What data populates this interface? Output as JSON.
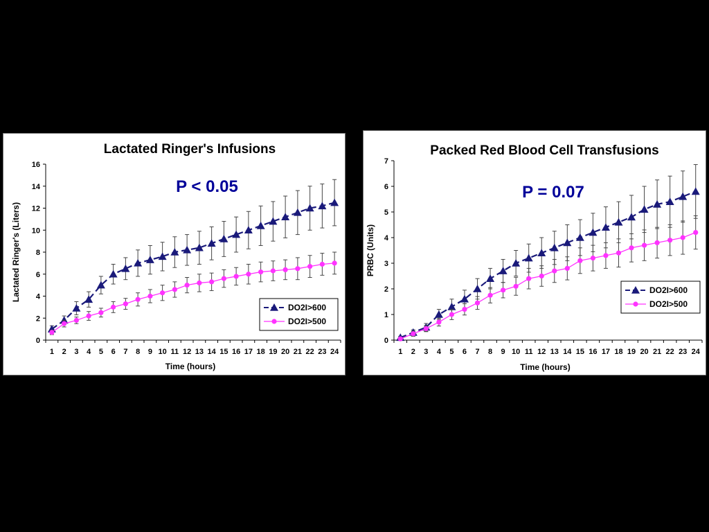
{
  "colors": {
    "background": "#000000",
    "panel": "#ffffff",
    "series_dark_blue": "#1a1a7a",
    "series_magenta": "#ff33ff",
    "p_value_text": "#000099",
    "error_bar": "#444444"
  },
  "chart_data": [
    {
      "type": "line",
      "title": "Lactated Ringer's Infusions",
      "annotation": "P < 0.05",
      "xlabel": "Time (hours)",
      "ylabel": "Lactated Ringer's (Liters)",
      "x": [
        1,
        2,
        3,
        4,
        5,
        6,
        7,
        8,
        9,
        10,
        11,
        12,
        13,
        14,
        15,
        16,
        17,
        18,
        19,
        20,
        21,
        22,
        23,
        24
      ],
      "x_tick_labels": [
        "1",
        "2",
        "3",
        "4",
        "5",
        "6",
        "7",
        "8",
        "9",
        "10",
        "11",
        "12",
        "13",
        "14",
        "15",
        "16",
        "17",
        "18",
        "19",
        "20",
        "21",
        "22",
        "23",
        "24"
      ],
      "ylim": [
        0,
        16
      ],
      "y_ticks": [
        0,
        2,
        4,
        6,
        8,
        10,
        12,
        14,
        16
      ],
      "y_tick_labels": [
        "0",
        "2",
        "4",
        "6",
        "8",
        "10",
        "12",
        "14",
        "16"
      ],
      "grid": false,
      "legend_position": "bottom-right",
      "series": [
        {
          "name": "DO2I>600",
          "marker": "triangle",
          "line_style": "dashed",
          "color": "#1a1a7a",
          "values": [
            1.0,
            1.8,
            2.9,
            3.7,
            5.0,
            6.0,
            6.5,
            7.0,
            7.3,
            7.6,
            8.0,
            8.2,
            8.4,
            8.8,
            9.2,
            9.6,
            10.0,
            10.4,
            10.8,
            11.2,
            11.6,
            12.0,
            12.2,
            12.5
          ],
          "error": [
            0.3,
            0.4,
            0.6,
            0.7,
            0.8,
            0.9,
            1.0,
            1.2,
            1.3,
            1.3,
            1.4,
            1.4,
            1.5,
            1.5,
            1.6,
            1.6,
            1.7,
            1.8,
            1.8,
            1.9,
            2.0,
            2.0,
            2.0,
            2.1
          ]
        },
        {
          "name": "DO2I>500",
          "marker": "circle",
          "line_style": "solid",
          "color": "#ff33ff",
          "values": [
            0.7,
            1.5,
            1.8,
            2.2,
            2.5,
            3.0,
            3.3,
            3.7,
            4.0,
            4.3,
            4.6,
            5.0,
            5.2,
            5.3,
            5.6,
            5.8,
            6.0,
            6.2,
            6.3,
            6.4,
            6.5,
            6.7,
            6.9,
            7.0
          ],
          "error": [
            0.2,
            0.3,
            0.3,
            0.4,
            0.4,
            0.5,
            0.5,
            0.6,
            0.6,
            0.7,
            0.7,
            0.7,
            0.8,
            0.8,
            0.8,
            0.8,
            0.9,
            0.9,
            0.9,
            0.9,
            1.0,
            1.0,
            1.0,
            1.0
          ]
        }
      ]
    },
    {
      "type": "line",
      "title": "Packed Red Blood Cell Transfusions",
      "annotation": "P = 0.07",
      "xlabel": "Time (hours)",
      "ylabel": "PRBC (Units)",
      "x": [
        1,
        2,
        3,
        4,
        5,
        6,
        7,
        8,
        9,
        10,
        11,
        12,
        13,
        14,
        15,
        16,
        17,
        18,
        19,
        20,
        21,
        22,
        23,
        24
      ],
      "x_tick_labels": [
        "1",
        "2",
        "3",
        "4",
        "5",
        "6",
        "7",
        "8",
        "9",
        "10",
        "11",
        "12",
        "13",
        "14",
        "15",
        "16",
        "17",
        "18",
        "19",
        "20",
        "21",
        "22",
        "23",
        "24"
      ],
      "ylim": [
        0,
        7
      ],
      "y_ticks": [
        0,
        1,
        2,
        3,
        4,
        5,
        6,
        7
      ],
      "y_tick_labels": [
        "0",
        "1",
        "2",
        "3",
        "4",
        "5",
        "6",
        "7"
      ],
      "grid": false,
      "legend_position": "bottom-right",
      "series": [
        {
          "name": "DO2I>600",
          "marker": "triangle",
          "line_style": "dashed",
          "color": "#1a1a7a",
          "values": [
            0.1,
            0.3,
            0.5,
            1.0,
            1.3,
            1.6,
            2.0,
            2.4,
            2.7,
            3.0,
            3.2,
            3.4,
            3.6,
            3.8,
            4.0,
            4.2,
            4.4,
            4.6,
            4.8,
            5.1,
            5.3,
            5.4,
            5.6,
            5.8
          ],
          "error": [
            0.05,
            0.1,
            0.15,
            0.2,
            0.3,
            0.35,
            0.4,
            0.4,
            0.45,
            0.5,
            0.55,
            0.6,
            0.65,
            0.7,
            0.7,
            0.75,
            0.8,
            0.8,
            0.85,
            0.9,
            0.95,
            1.0,
            1.0,
            1.05
          ]
        },
        {
          "name": "DO2I>500",
          "marker": "circle",
          "line_style": "solid",
          "color": "#ff33ff",
          "values": [
            0.05,
            0.25,
            0.45,
            0.7,
            1.0,
            1.2,
            1.45,
            1.75,
            1.95,
            2.1,
            2.4,
            2.5,
            2.7,
            2.8,
            3.1,
            3.2,
            3.3,
            3.4,
            3.6,
            3.7,
            3.8,
            3.9,
            4.0,
            4.2
          ],
          "error": [
            0.05,
            0.1,
            0.12,
            0.15,
            0.2,
            0.22,
            0.25,
            0.3,
            0.3,
            0.35,
            0.4,
            0.4,
            0.45,
            0.45,
            0.5,
            0.5,
            0.5,
            0.55,
            0.55,
            0.6,
            0.6,
            0.6,
            0.65,
            0.65
          ]
        }
      ]
    }
  ]
}
